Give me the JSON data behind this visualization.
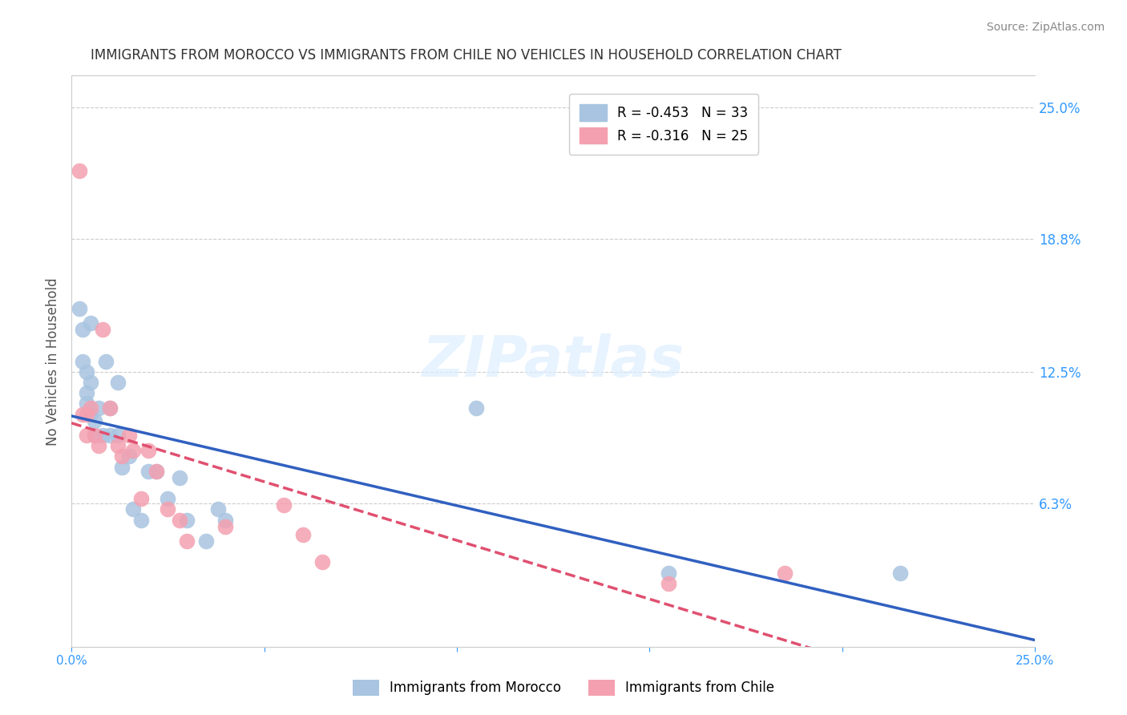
{
  "title": "IMMIGRANTS FROM MOROCCO VS IMMIGRANTS FROM CHILE NO VEHICLES IN HOUSEHOLD CORRELATION CHART",
  "source": "Source: ZipAtlas.com",
  "ylabel": "No Vehicles in Household",
  "y_ticks_right": [
    "25.0%",
    "18.8%",
    "12.5%",
    "6.3%"
  ],
  "y_ticks_right_vals": [
    0.25,
    0.188,
    0.125,
    0.063
  ],
  "xlim": [
    0.0,
    0.25
  ],
  "ylim": [
    -0.005,
    0.265
  ],
  "morocco_color": "#a8c4e0",
  "chile_color": "#f4a0b0",
  "morocco_line_color": "#3060c0",
  "chile_line_color": "#e05070",
  "legend_morocco_R": "-0.453",
  "legend_morocco_N": "33",
  "legend_chile_R": "-0.316",
  "legend_chile_N": "25",
  "watermark": "ZIPatlas",
  "morocco_x": [
    0.002,
    0.003,
    0.003,
    0.004,
    0.004,
    0.004,
    0.005,
    0.005,
    0.005,
    0.006,
    0.006,
    0.007,
    0.008,
    0.009,
    0.01,
    0.01,
    0.012,
    0.012,
    0.013,
    0.015,
    0.016,
    0.018,
    0.02,
    0.022,
    0.025,
    0.028,
    0.03,
    0.035,
    0.038,
    0.04,
    0.105,
    0.155,
    0.215
  ],
  "morocco_y": [
    0.155,
    0.145,
    0.13,
    0.125,
    0.115,
    0.11,
    0.148,
    0.12,
    0.105,
    0.102,
    0.095,
    0.108,
    0.095,
    0.13,
    0.108,
    0.095,
    0.12,
    0.095,
    0.08,
    0.085,
    0.06,
    0.055,
    0.078,
    0.078,
    0.065,
    0.075,
    0.055,
    0.045,
    0.06,
    0.055,
    0.108,
    0.03,
    0.03
  ],
  "chile_x": [
    0.002,
    0.003,
    0.004,
    0.004,
    0.005,
    0.006,
    0.007,
    0.008,
    0.01,
    0.012,
    0.013,
    0.015,
    0.016,
    0.018,
    0.02,
    0.022,
    0.025,
    0.028,
    0.03,
    0.04,
    0.055,
    0.06,
    0.065,
    0.155,
    0.185
  ],
  "chile_y": [
    0.22,
    0.105,
    0.095,
    0.105,
    0.108,
    0.095,
    0.09,
    0.145,
    0.108,
    0.09,
    0.085,
    0.095,
    0.088,
    0.065,
    0.088,
    0.078,
    0.06,
    0.055,
    0.045,
    0.052,
    0.062,
    0.048,
    0.035,
    0.025,
    0.03
  ]
}
